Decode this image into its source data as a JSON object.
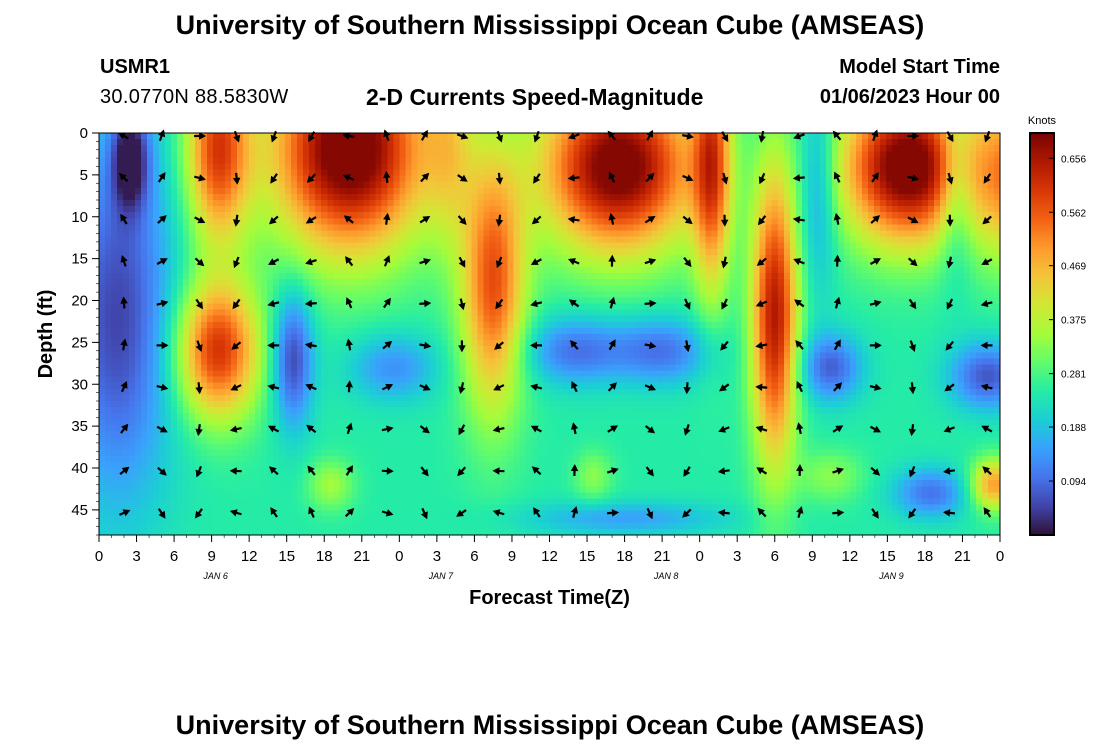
{
  "page": {
    "title_top": "University of Southern Mississippi Ocean Cube (AMSEAS)",
    "title_bottom": "University of Southern Mississippi Ocean Cube (AMSEAS)",
    "station": "USMR1",
    "coordinates": "30.0770N  88.5830W",
    "subtitle": "2-D Currents Speed-Magnitude",
    "model_start_label": "Model Start Time",
    "model_start_value": "01/06/2023 Hour 00"
  },
  "colors": {
    "colormap": [
      "#30123b",
      "#4145ab",
      "#4675ed",
      "#39a2fc",
      "#1bcfd4",
      "#24eca6",
      "#61fc6c",
      "#a4fc3b",
      "#d1e834",
      "#f3c63a",
      "#fe9b2d",
      "#f36315",
      "#d93806",
      "#b11901",
      "#7a0403"
    ],
    "arrow": "#000000",
    "axis": "#000000"
  },
  "chart_data": {
    "type": "heatmap",
    "title": "2-D Currents Speed-Magnitude",
    "xlabel": "Forecast Time(Z)",
    "ylabel": "Depth (ft)",
    "x_range_hours": [
      0,
      72
    ],
    "y_range_ft": [
      0,
      48
    ],
    "x_tick_hours": [
      0,
      3,
      6,
      9,
      12,
      15,
      18,
      21,
      24,
      27,
      30,
      33,
      36,
      39,
      42,
      45,
      48,
      51,
      54,
      57,
      60,
      63,
      66,
      69,
      72
    ],
    "x_tick_labels": [
      "0",
      "3",
      "6",
      "9",
      "12",
      "15",
      "18",
      "21",
      "0",
      "3",
      "6",
      "9",
      "12",
      "15",
      "18",
      "21",
      "0",
      "3",
      "6",
      "9",
      "12",
      "15",
      "18",
      "21",
      "0"
    ],
    "day_labels": [
      {
        "hour": 9,
        "label": "JAN 6"
      },
      {
        "hour": 27,
        "label": "JAN 7"
      },
      {
        "hour": 45,
        "label": "JAN 8"
      },
      {
        "hour": 63,
        "label": "JAN 9"
      }
    ],
    "y_ticks": [
      0,
      5,
      10,
      15,
      20,
      25,
      30,
      35,
      40,
      45
    ],
    "colorbar": {
      "title": "Knots",
      "min": 0.0,
      "max": 0.7,
      "ticks": [
        0.094,
        0.188,
        0.281,
        0.375,
        0.469,
        0.562,
        0.656
      ],
      "tick_labels": [
        "0.094",
        "0.188",
        "0.281",
        "0.375",
        "0.469",
        "0.562",
        "0.656"
      ]
    },
    "speed_field": {
      "units": "knots",
      "background": 0.25,
      "features": [
        {
          "t": 1.5,
          "d": 22,
          "st": 4.5,
          "sd": 22,
          "v": -0.2
        },
        {
          "t": 2.5,
          "d": 3,
          "st": 1.5,
          "sd": 6,
          "v": -0.22
        },
        {
          "t": 9.5,
          "d": 2,
          "st": 2.5,
          "sd": 11,
          "v": 0.34
        },
        {
          "t": 9.5,
          "d": 26,
          "st": 3.2,
          "sd": 8,
          "v": 0.36
        },
        {
          "t": 15.5,
          "d": 27,
          "st": 1.6,
          "sd": 8,
          "v": -0.2
        },
        {
          "t": 20,
          "d": 2,
          "st": 6,
          "sd": 12,
          "v": 0.5
        },
        {
          "t": 23.5,
          "d": 28,
          "st": 3.5,
          "sd": 4,
          "v": -0.12
        },
        {
          "t": 18.5,
          "d": 42,
          "st": 1.8,
          "sd": 3,
          "v": 0.1
        },
        {
          "t": 28,
          "d": 1,
          "st": 2,
          "sd": 12,
          "v": 0.12
        },
        {
          "t": 31.5,
          "d": 18,
          "st": 2.5,
          "sd": 15,
          "v": 0.32
        },
        {
          "t": 41.5,
          "d": 4,
          "st": 6,
          "sd": 10,
          "v": 0.48
        },
        {
          "t": 38,
          "d": 26,
          "st": 4,
          "sd": 4,
          "v": -0.15
        },
        {
          "t": 45,
          "d": 26,
          "st": 4,
          "sd": 4,
          "v": -0.15
        },
        {
          "t": 49,
          "d": 4,
          "st": 1.5,
          "sd": 15,
          "v": 0.3
        },
        {
          "t": 54,
          "d": 22,
          "st": 1.8,
          "sd": 17,
          "v": 0.4
        },
        {
          "t": 39.5,
          "d": 41,
          "st": 1.5,
          "sd": 3,
          "v": 0.08
        },
        {
          "t": 42,
          "d": 46,
          "st": 8,
          "sd": 2,
          "v": -0.1
        },
        {
          "t": 57.5,
          "d": 6,
          "st": 1.5,
          "sd": 12,
          "v": -0.12
        },
        {
          "t": 64.5,
          "d": 4,
          "st": 5,
          "sd": 9,
          "v": 0.48
        },
        {
          "t": 58.5,
          "d": 41,
          "st": 2.5,
          "sd": 3,
          "v": 0.08
        },
        {
          "t": 58.5,
          "d": 28,
          "st": 2.5,
          "sd": 4,
          "v": -0.17
        },
        {
          "t": 66.5,
          "d": 43,
          "st": 3,
          "sd": 3,
          "v": -0.15
        },
        {
          "t": 68.5,
          "d": 6,
          "st": 1.5,
          "sd": 10,
          "v": -0.15
        },
        {
          "t": 71,
          "d": 29,
          "st": 3,
          "sd": 4,
          "v": -0.18
        },
        {
          "t": 78,
          "d": 5,
          "st": 7,
          "sd": 10,
          "v": 0.5
        },
        {
          "t": 71.5,
          "d": 42,
          "st": 1.8,
          "sd": 3,
          "v": 0.25
        },
        {
          "t": 84,
          "d": 30,
          "st": 6,
          "sd": 4,
          "v": -0.1
        }
      ]
    },
    "current_vectors": {
      "times_hours": [
        2,
        5,
        8,
        11,
        14,
        17,
        20,
        23,
        26,
        29,
        32,
        35,
        38,
        41,
        44,
        47,
        50,
        53,
        56,
        59,
        62,
        65,
        68,
        71
      ],
      "depths_ft": [
        0,
        5,
        10,
        15,
        20,
        25,
        30,
        35,
        40,
        45
      ],
      "phase_by_time_deg": [
        300,
        20,
        90,
        160,
        200,
        210,
        280,
        340,
        30,
        110,
        160,
        200,
        250,
        320,
        30,
        100,
        150,
        190,
        250,
        320,
        20,
        90,
        150,
        200
      ],
      "shear_deg_per_ft": 2.8
    }
  }
}
